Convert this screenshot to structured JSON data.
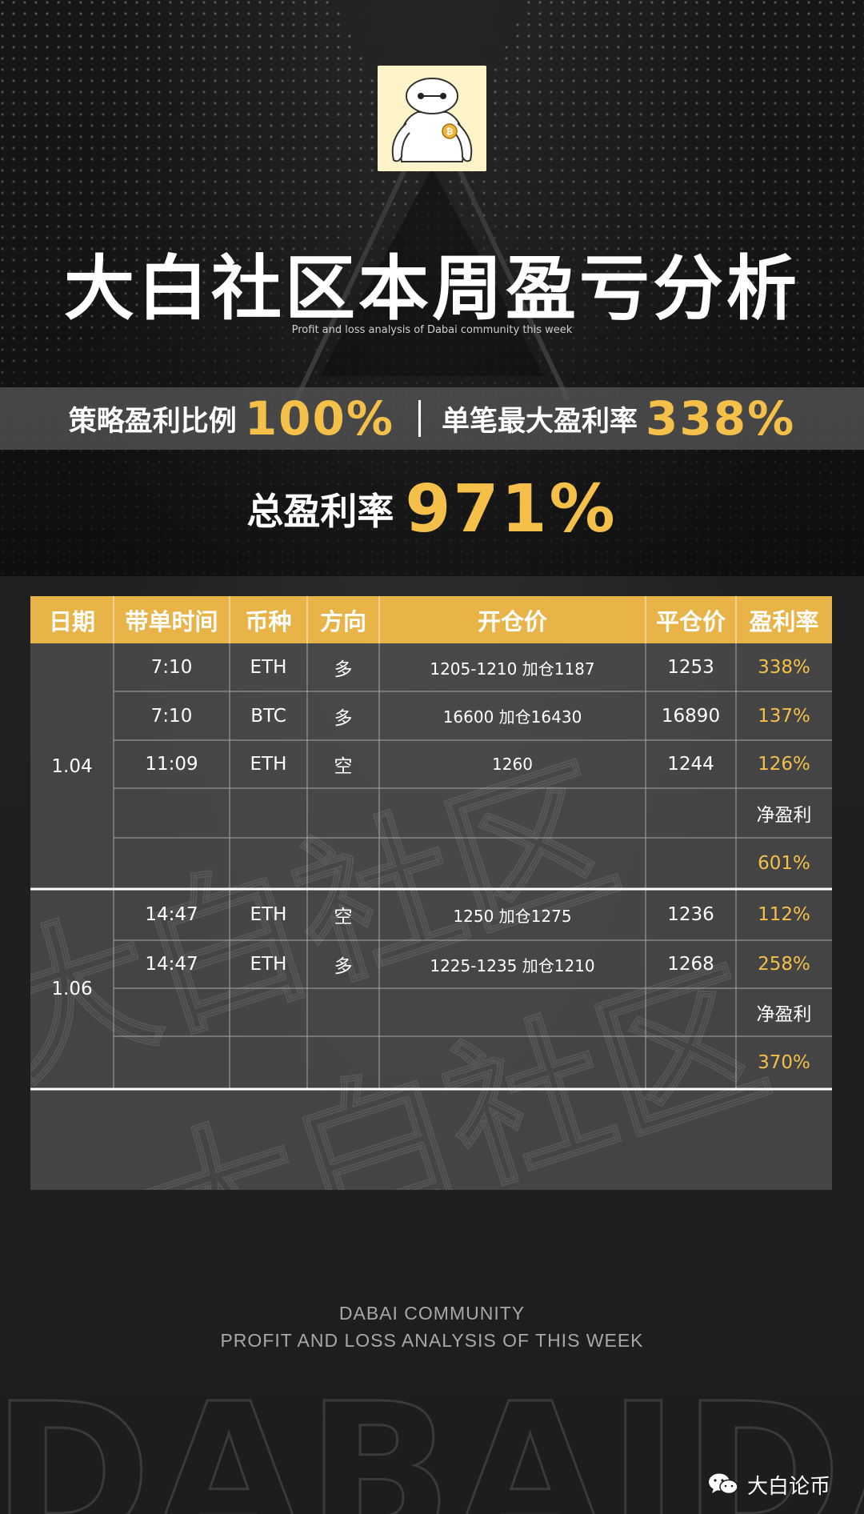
{
  "header": {
    "title": "大白社区本周盈亏分析",
    "subtitle": "Profit and loss analysis of Dabai community this week"
  },
  "stats": {
    "strategy_label": "策略盈利比例",
    "strategy_value": "100%",
    "max_label": "单笔最大盈利率",
    "max_value": "338%",
    "total_label": "总盈利率",
    "total_value": "971%"
  },
  "table": {
    "headers": [
      "日期",
      "带单时间",
      "币种",
      "方向",
      "开仓价",
      "平仓价",
      "盈利率"
    ],
    "groups": [
      {
        "date": "1.04",
        "rows": [
          {
            "time": "7:10",
            "coin": "ETH",
            "dir": "多",
            "open": "1205-1210  加仓1187",
            "close": "1253",
            "rate": "338%"
          },
          {
            "time": "7:10",
            "coin": "BTC",
            "dir": "多",
            "open": "16600  加仓16430",
            "close": "16890",
            "rate": "137%"
          },
          {
            "time": "11:09",
            "coin": "ETH",
            "dir": "空",
            "open": "1260",
            "close": "1244",
            "rate": "126%"
          }
        ],
        "net_label": "净盈利",
        "net_value": "601%"
      },
      {
        "date": "1.06",
        "rows": [
          {
            "time": "14:47",
            "coin": "ETH",
            "dir": "空",
            "open": "1250  加仓1275",
            "close": "1236",
            "rate": "112%"
          },
          {
            "time": "14:47",
            "coin": "ETH",
            "dir": "多",
            "open": "1225-1235  加仓1210",
            "close": "1268",
            "rate": "258%"
          }
        ],
        "net_label": "净盈利",
        "net_value": "370%"
      }
    ]
  },
  "watermark": "大白社区",
  "footer": {
    "line1": "DABAI COMMUNITY",
    "line2": "PROFIT AND LOSS ANALYSIS OF THIS WEEK",
    "brand": "DABAIDABAI",
    "wechat_label": "大白论币"
  },
  "colors": {
    "accent": "#f4c04a",
    "header_bg": "#e8b448",
    "band_bg": "#555555",
    "table_bg": "#5c5c5c"
  }
}
